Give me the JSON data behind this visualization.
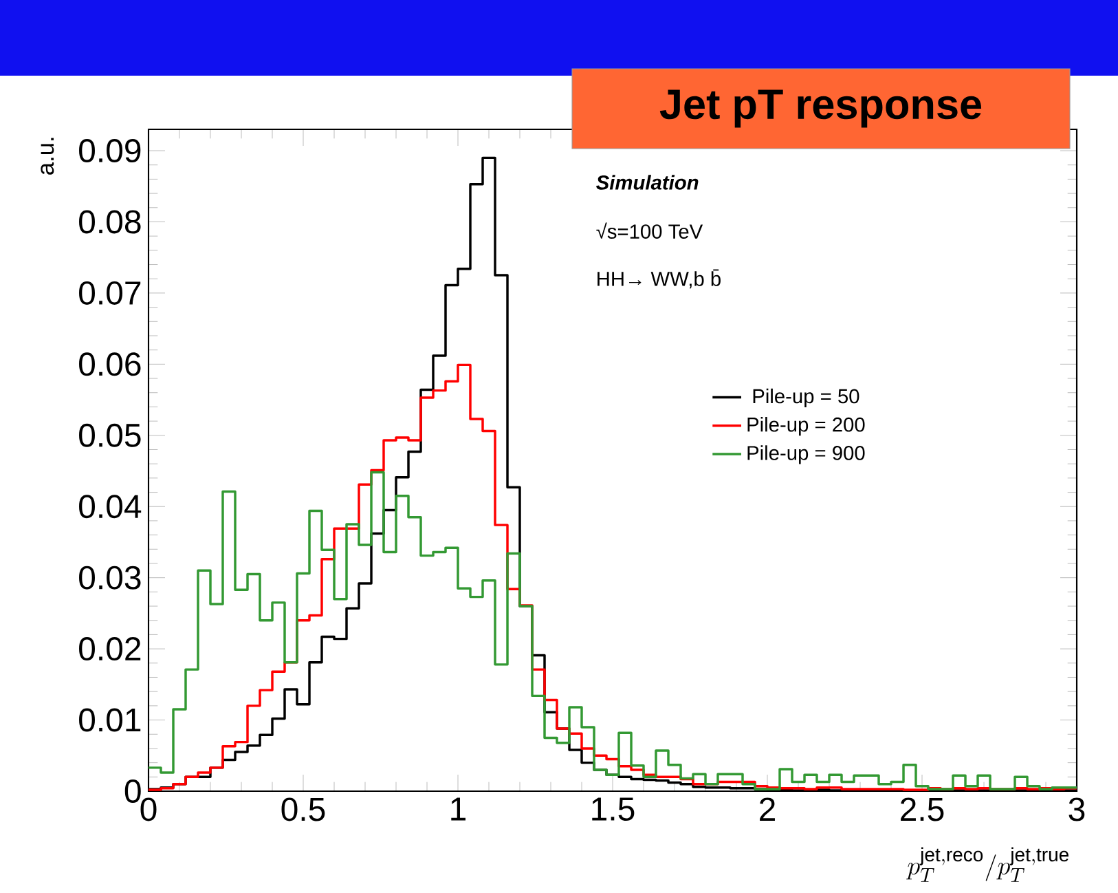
{
  "chart_data": {
    "type": "histogram",
    "title": "Jet pT response",
    "xlabel": "p_T^{\\mathrm{jet,reco}}/p_T^{\\mathrm{jet,true}}",
    "ylabel": "a.u.",
    "bins": [
      0,
      0.04,
      0.08,
      0.12,
      0.16,
      0.2,
      0.24,
      0.28,
      0.32,
      0.36,
      0.4,
      0.44,
      0.48,
      0.52,
      0.56,
      0.6,
      0.64,
      0.68,
      0.72,
      0.76,
      0.8,
      0.84,
      0.88,
      0.92,
      0.96,
      1,
      1.04,
      1.08,
      1.12,
      1.16,
      1.2,
      1.24,
      1.28,
      1.32,
      1.36,
      1.4,
      1.44,
      1.48,
      1.52,
      1.56,
      1.6,
      1.64,
      1.68,
      1.72,
      1.76,
      1.8,
      1.84,
      1.88,
      1.92,
      1.96,
      2,
      2.04,
      2.08,
      2.12,
      2.16,
      2.2,
      2.24,
      2.28,
      2.32,
      2.36,
      2.4,
      2.44,
      2.48,
      2.52,
      2.56,
      2.6,
      2.64,
      2.68,
      2.72,
      2.76,
      2.8,
      2.84,
      2.88,
      2.92,
      2.96,
      3
    ],
    "series": [
      {
        "name": "Pile-up = 50",
        "color": "#000000",
        "values": [
          0.0003,
          0.0005,
          0.001,
          0.002,
          0.002,
          0.0033,
          0.0044,
          0.0055,
          0.0064,
          0.0079,
          0.0102,
          0.0143,
          0.0122,
          0.0181,
          0.0217,
          0.0214,
          0.0257,
          0.0292,
          0.0362,
          0.0395,
          0.0441,
          0.0477,
          0.0564,
          0.0612,
          0.0711,
          0.0734,
          0.0853,
          0.089,
          0.0725,
          0.0427,
          0.026,
          0.0191,
          0.0111,
          0.0088,
          0.0058,
          0.004,
          0.003,
          0.0023,
          0.002,
          0.0017,
          0.0016,
          0.0015,
          0.0012,
          0.001,
          0.0006,
          0.0005,
          0.0005,
          0.0004,
          0.0004,
          0.0003,
          0.0002,
          0.0002,
          0.0001,
          0.0002,
          0.0002,
          0.0001,
          0.0002,
          0.0001,
          0.0001,
          0.0002,
          0.0001,
          0.0001,
          0.0001,
          0.0002,
          0.0001,
          0.0001,
          0.0001,
          0.0001,
          0.0001,
          0.0001,
          0.0001,
          0.0001,
          0.0001,
          0.0001,
          0.0001
        ]
      },
      {
        "name": "Pile-up = 200",
        "color": "#ff0000",
        "values": [
          0.0002,
          0.0004,
          0.001,
          0.002,
          0.0026,
          0.0033,
          0.0063,
          0.0069,
          0.012,
          0.0142,
          0.0168,
          0.0181,
          0.024,
          0.0247,
          0.0326,
          0.0369,
          0.0369,
          0.0431,
          0.0451,
          0.0493,
          0.0497,
          0.0493,
          0.0553,
          0.0563,
          0.0576,
          0.0599,
          0.0523,
          0.0506,
          0.0374,
          0.0284,
          0.0261,
          0.0171,
          0.0128,
          0.0088,
          0.0081,
          0.006,
          0.005,
          0.0045,
          0.0035,
          0.003,
          0.0023,
          0.002,
          0.002,
          0.0017,
          0.001,
          0.001,
          0.0013,
          0.0013,
          0.0013,
          0.0007,
          0.0005,
          0.0004,
          0.0004,
          0.0003,
          0.0005,
          0.0005,
          0.0003,
          0.0003,
          0.0003,
          0.0003,
          0.0003,
          0.0002,
          0.0002,
          0.0004,
          0.0003,
          0.0004,
          0.0003,
          0.0004,
          0.0003,
          0.0003,
          0.0004,
          0.0003,
          0.0004,
          0.0003,
          0.0004
        ]
      },
      {
        "name": "Pile-up = 900",
        "color": "#339933",
        "values": [
          0.0033,
          0.0026,
          0.0115,
          0.0171,
          0.031,
          0.0263,
          0.0421,
          0.0283,
          0.0305,
          0.024,
          0.0265,
          0.0181,
          0.0306,
          0.0394,
          0.0339,
          0.027,
          0.0375,
          0.0346,
          0.0448,
          0.0336,
          0.0415,
          0.0385,
          0.0331,
          0.0336,
          0.0342,
          0.0285,
          0.0273,
          0.0296,
          0.0178,
          0.0334,
          0.026,
          0.0134,
          0.0075,
          0.0068,
          0.0118,
          0.009,
          0.003,
          0.0023,
          0.0082,
          0.0036,
          0.002,
          0.0057,
          0.0037,
          0.0018,
          0.0024,
          0.001,
          0.0024,
          0.0024,
          0.001,
          0.0003,
          0.0003,
          0.0031,
          0.0013,
          0.0023,
          0.0013,
          0.0023,
          0.0013,
          0.0022,
          0.0022,
          0.001,
          0.0013,
          0.0037,
          0.0007,
          0.0003,
          0.0003,
          0.0022,
          0.0007,
          0.0022,
          0.0003,
          0.0003,
          0.002,
          0.0007,
          0.0003,
          0.0005,
          0.0005
        ]
      }
    ],
    "xlim": [
      0,
      3
    ],
    "ylim": [
      0,
      0.093
    ],
    "xticks": [
      0,
      0.5,
      1,
      1.5,
      2,
      2.5,
      3
    ],
    "yticks": [
      0,
      0.01,
      0.02,
      0.03,
      0.04,
      0.05,
      0.06,
      0.07,
      0.08,
      0.09
    ],
    "legend": "right",
    "annotations": [
      "Simulation",
      "√s=100 TeV",
      "HH→ WW,b b̄"
    ]
  }
}
